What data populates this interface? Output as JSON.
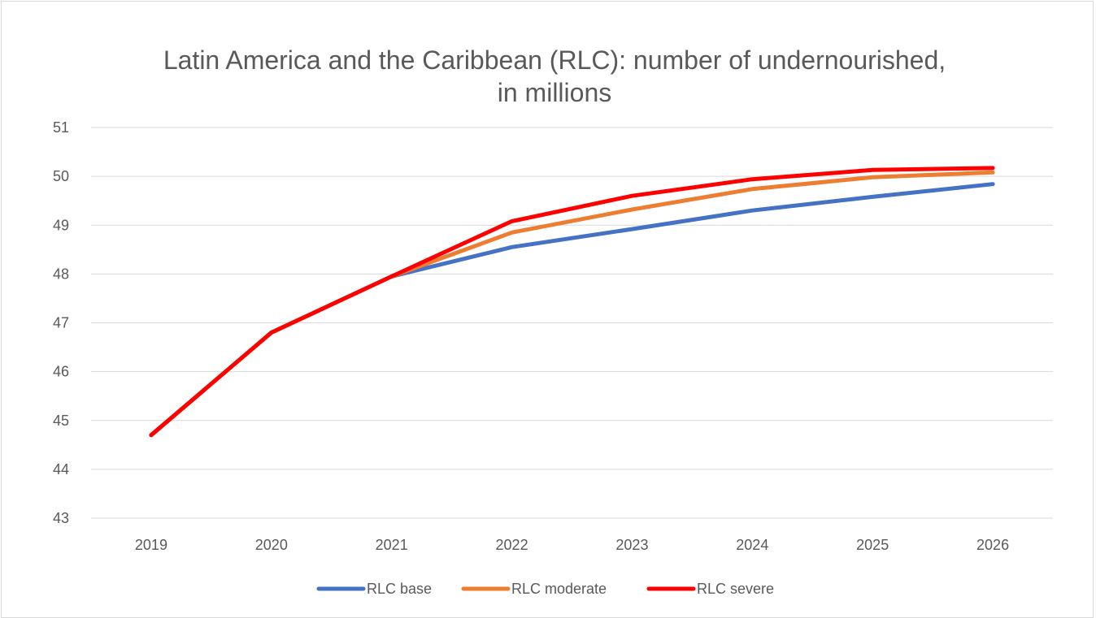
{
  "chart_data": {
    "type": "line",
    "title_lines": [
      "Latin America and the Caribbean (RLC): number of undernourished,",
      "in millions"
    ],
    "categories": [
      "2019",
      "2020",
      "2021",
      "2022",
      "2023",
      "2024",
      "2025",
      "2026"
    ],
    "ylim": [
      43,
      51
    ],
    "yticks": [
      "43",
      "44",
      "45",
      "46",
      "47",
      "48",
      "49",
      "50",
      "51"
    ],
    "grid": true,
    "legend_position": "bottom",
    "series": [
      {
        "name": "RLC base",
        "color": "#4472C4",
        "values": [
          44.7,
          46.8,
          47.95,
          48.55,
          48.92,
          49.3,
          49.58,
          49.84
        ]
      },
      {
        "name": "RLC moderate",
        "color": "#ED7D31",
        "values": [
          44.7,
          46.8,
          47.95,
          48.85,
          49.32,
          49.74,
          49.98,
          50.08
        ]
      },
      {
        "name": "RLC severe",
        "color": "#FF0000",
        "values": [
          44.7,
          46.8,
          47.95,
          49.08,
          49.6,
          49.94,
          50.13,
          50.17
        ]
      }
    ]
  }
}
